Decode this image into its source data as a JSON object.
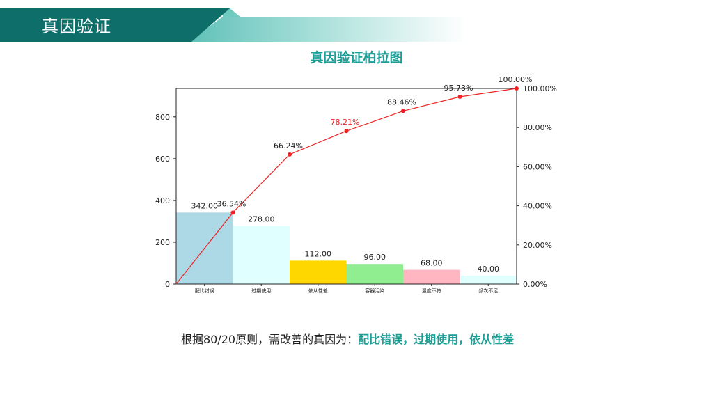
{
  "header": {
    "title": "真因验证"
  },
  "chart_data": {
    "type": "bar",
    "title": "真因验证柏拉图",
    "categories": [
      "配比错误",
      "过期使用",
      "依从性差",
      "容器污染",
      "温度不符",
      "频次不足"
    ],
    "values": [
      342,
      278,
      112,
      96,
      68,
      40
    ],
    "value_labels": [
      "342.00",
      "278.00",
      "112.00",
      "96.00",
      "68.00",
      "40.00"
    ],
    "bar_colors": [
      "#add8e6",
      "#e0ffff",
      "#ffd700",
      "#90ee90",
      "#ffb6c1",
      "#e0ffff"
    ],
    "cumulative": {
      "values": [
        0,
        36.54,
        66.24,
        78.21,
        88.46,
        95.73,
        100.0
      ],
      "labels": [
        "",
        "36.54%",
        "66.24%",
        "78.21%",
        "88.46%",
        "95.73%",
        "100.00%"
      ],
      "highlight_index": 3,
      "color": "#ee2222"
    },
    "y_left": {
      "ylim": [
        0,
        936
      ],
      "ticks": [
        0,
        200,
        400,
        600,
        800
      ]
    },
    "y_right": {
      "ylim": [
        0,
        100
      ],
      "ticks": [
        "0.00%",
        "20.00%",
        "40.00%",
        "60.00%",
        "80.00%",
        "100.00%"
      ]
    }
  },
  "conclusion": {
    "prefix": "根据80/20原则，需改善的真因为：",
    "highlight": "配比错误，过期使用，依从性差"
  }
}
